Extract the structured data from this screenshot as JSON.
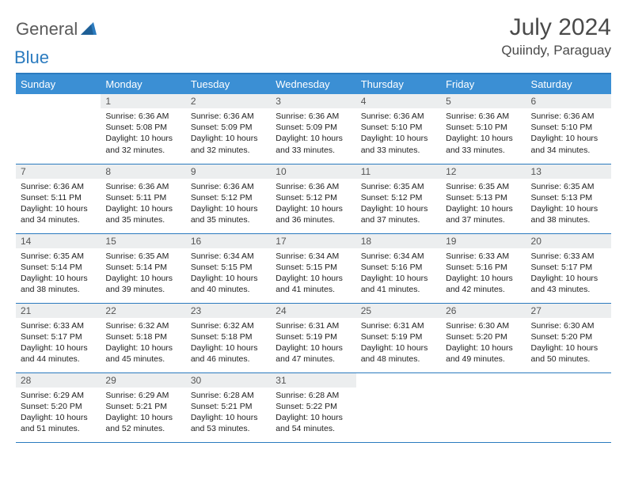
{
  "brand": {
    "part1": "General",
    "part2": "Blue"
  },
  "title": "July 2024",
  "location": "Quiindy, Paraguay",
  "colors": {
    "accent": "#2b7bbf",
    "header_bg": "#3b8fd4",
    "daynum_bg": "#eceeef",
    "text": "#4a4a4a"
  },
  "weekdays": [
    "Sunday",
    "Monday",
    "Tuesday",
    "Wednesday",
    "Thursday",
    "Friday",
    "Saturday"
  ],
  "weeks": [
    [
      null,
      {
        "n": "1",
        "sr": "Sunrise: 6:36 AM",
        "ss": "Sunset: 5:08 PM",
        "dl": "Daylight: 10 hours and 32 minutes."
      },
      {
        "n": "2",
        "sr": "Sunrise: 6:36 AM",
        "ss": "Sunset: 5:09 PM",
        "dl": "Daylight: 10 hours and 32 minutes."
      },
      {
        "n": "3",
        "sr": "Sunrise: 6:36 AM",
        "ss": "Sunset: 5:09 PM",
        "dl": "Daylight: 10 hours and 33 minutes."
      },
      {
        "n": "4",
        "sr": "Sunrise: 6:36 AM",
        "ss": "Sunset: 5:10 PM",
        "dl": "Daylight: 10 hours and 33 minutes."
      },
      {
        "n": "5",
        "sr": "Sunrise: 6:36 AM",
        "ss": "Sunset: 5:10 PM",
        "dl": "Daylight: 10 hours and 33 minutes."
      },
      {
        "n": "6",
        "sr": "Sunrise: 6:36 AM",
        "ss": "Sunset: 5:10 PM",
        "dl": "Daylight: 10 hours and 34 minutes."
      }
    ],
    [
      {
        "n": "7",
        "sr": "Sunrise: 6:36 AM",
        "ss": "Sunset: 5:11 PM",
        "dl": "Daylight: 10 hours and 34 minutes."
      },
      {
        "n": "8",
        "sr": "Sunrise: 6:36 AM",
        "ss": "Sunset: 5:11 PM",
        "dl": "Daylight: 10 hours and 35 minutes."
      },
      {
        "n": "9",
        "sr": "Sunrise: 6:36 AM",
        "ss": "Sunset: 5:12 PM",
        "dl": "Daylight: 10 hours and 35 minutes."
      },
      {
        "n": "10",
        "sr": "Sunrise: 6:36 AM",
        "ss": "Sunset: 5:12 PM",
        "dl": "Daylight: 10 hours and 36 minutes."
      },
      {
        "n": "11",
        "sr": "Sunrise: 6:35 AM",
        "ss": "Sunset: 5:12 PM",
        "dl": "Daylight: 10 hours and 37 minutes."
      },
      {
        "n": "12",
        "sr": "Sunrise: 6:35 AM",
        "ss": "Sunset: 5:13 PM",
        "dl": "Daylight: 10 hours and 37 minutes."
      },
      {
        "n": "13",
        "sr": "Sunrise: 6:35 AM",
        "ss": "Sunset: 5:13 PM",
        "dl": "Daylight: 10 hours and 38 minutes."
      }
    ],
    [
      {
        "n": "14",
        "sr": "Sunrise: 6:35 AM",
        "ss": "Sunset: 5:14 PM",
        "dl": "Daylight: 10 hours and 38 minutes."
      },
      {
        "n": "15",
        "sr": "Sunrise: 6:35 AM",
        "ss": "Sunset: 5:14 PM",
        "dl": "Daylight: 10 hours and 39 minutes."
      },
      {
        "n": "16",
        "sr": "Sunrise: 6:34 AM",
        "ss": "Sunset: 5:15 PM",
        "dl": "Daylight: 10 hours and 40 minutes."
      },
      {
        "n": "17",
        "sr": "Sunrise: 6:34 AM",
        "ss": "Sunset: 5:15 PM",
        "dl": "Daylight: 10 hours and 41 minutes."
      },
      {
        "n": "18",
        "sr": "Sunrise: 6:34 AM",
        "ss": "Sunset: 5:16 PM",
        "dl": "Daylight: 10 hours and 41 minutes."
      },
      {
        "n": "19",
        "sr": "Sunrise: 6:33 AM",
        "ss": "Sunset: 5:16 PM",
        "dl": "Daylight: 10 hours and 42 minutes."
      },
      {
        "n": "20",
        "sr": "Sunrise: 6:33 AM",
        "ss": "Sunset: 5:17 PM",
        "dl": "Daylight: 10 hours and 43 minutes."
      }
    ],
    [
      {
        "n": "21",
        "sr": "Sunrise: 6:33 AM",
        "ss": "Sunset: 5:17 PM",
        "dl": "Daylight: 10 hours and 44 minutes."
      },
      {
        "n": "22",
        "sr": "Sunrise: 6:32 AM",
        "ss": "Sunset: 5:18 PM",
        "dl": "Daylight: 10 hours and 45 minutes."
      },
      {
        "n": "23",
        "sr": "Sunrise: 6:32 AM",
        "ss": "Sunset: 5:18 PM",
        "dl": "Daylight: 10 hours and 46 minutes."
      },
      {
        "n": "24",
        "sr": "Sunrise: 6:31 AM",
        "ss": "Sunset: 5:19 PM",
        "dl": "Daylight: 10 hours and 47 minutes."
      },
      {
        "n": "25",
        "sr": "Sunrise: 6:31 AM",
        "ss": "Sunset: 5:19 PM",
        "dl": "Daylight: 10 hours and 48 minutes."
      },
      {
        "n": "26",
        "sr": "Sunrise: 6:30 AM",
        "ss": "Sunset: 5:20 PM",
        "dl": "Daylight: 10 hours and 49 minutes."
      },
      {
        "n": "27",
        "sr": "Sunrise: 6:30 AM",
        "ss": "Sunset: 5:20 PM",
        "dl": "Daylight: 10 hours and 50 minutes."
      }
    ],
    [
      {
        "n": "28",
        "sr": "Sunrise: 6:29 AM",
        "ss": "Sunset: 5:20 PM",
        "dl": "Daylight: 10 hours and 51 minutes."
      },
      {
        "n": "29",
        "sr": "Sunrise: 6:29 AM",
        "ss": "Sunset: 5:21 PM",
        "dl": "Daylight: 10 hours and 52 minutes."
      },
      {
        "n": "30",
        "sr": "Sunrise: 6:28 AM",
        "ss": "Sunset: 5:21 PM",
        "dl": "Daylight: 10 hours and 53 minutes."
      },
      {
        "n": "31",
        "sr": "Sunrise: 6:28 AM",
        "ss": "Sunset: 5:22 PM",
        "dl": "Daylight: 10 hours and 54 minutes."
      },
      null,
      null,
      null
    ]
  ]
}
